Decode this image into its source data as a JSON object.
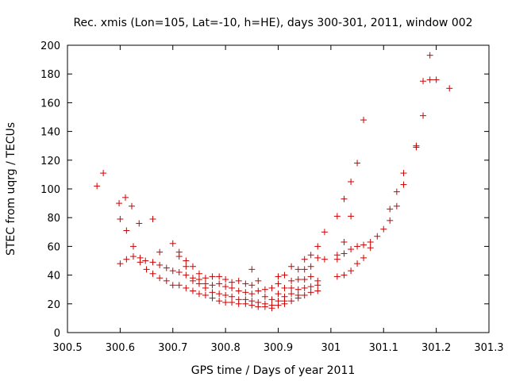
{
  "chart_data": {
    "type": "scatter",
    "title": "Rec. xmis (Lon=105, Lat=-10, h=HE), days 300-301, 2011, window 002",
    "xlabel": "GPS time / Days of year 2011",
    "ylabel": "STEC from uqrg / TECUs",
    "xlim": [
      300.5,
      301.3
    ],
    "ylim": [
      0,
      200
    ],
    "xticks": [
      300.5,
      300.6,
      300.7,
      300.8,
      300.9,
      301,
      301.1,
      301.2,
      301.3
    ],
    "xtick_labels": [
      "300.5",
      "300.6",
      "300.7",
      "300.8",
      "300.9",
      "301",
      "301.1",
      "301.2",
      "301.3"
    ],
    "yticks": [
      0,
      20,
      40,
      60,
      80,
      100,
      120,
      140,
      160,
      180,
      200
    ],
    "ytick_labels": [
      "0",
      "20",
      "40",
      "60",
      "80",
      "100",
      "120",
      "140",
      "160",
      "180",
      "200"
    ],
    "grid": false,
    "marker": "+",
    "marker_color": "#cc0000",
    "series": [
      {
        "name": "STEC",
        "points": [
          [
            300.556,
            102
          ],
          [
            300.568,
            111
          ],
          [
            300.598,
            90
          ],
          [
            300.6,
            79
          ],
          [
            300.6,
            48
          ],
          [
            300.61,
            94
          ],
          [
            300.612,
            71
          ],
          [
            300.612,
            51
          ],
          [
            300.622,
            88
          ],
          [
            300.625,
            60
          ],
          [
            300.625,
            53
          ],
          [
            300.636,
            76
          ],
          [
            300.638,
            52
          ],
          [
            300.638,
            49
          ],
          [
            300.648,
            50
          ],
          [
            300.65,
            44
          ],
          [
            300.662,
            79
          ],
          [
            300.662,
            49
          ],
          [
            300.662,
            41
          ],
          [
            300.675,
            56
          ],
          [
            300.675,
            47
          ],
          [
            300.675,
            38
          ],
          [
            300.688,
            45
          ],
          [
            300.688,
            36
          ],
          [
            300.7,
            62
          ],
          [
            300.7,
            43
          ],
          [
            300.7,
            33
          ],
          [
            300.712,
            56
          ],
          [
            300.712,
            53
          ],
          [
            300.712,
            42
          ],
          [
            300.712,
            33
          ],
          [
            300.725,
            50
          ],
          [
            300.725,
            46
          ],
          [
            300.725,
            40
          ],
          [
            300.725,
            31
          ],
          [
            300.738,
            46
          ],
          [
            300.738,
            38
          ],
          [
            300.738,
            36
          ],
          [
            300.738,
            29
          ],
          [
            300.75,
            41
          ],
          [
            300.75,
            37
          ],
          [
            300.75,
            34
          ],
          [
            300.75,
            27
          ],
          [
            300.762,
            38
          ],
          [
            300.762,
            34
          ],
          [
            300.762,
            31
          ],
          [
            300.762,
            26
          ],
          [
            300.775,
            39
          ],
          [
            300.775,
            33
          ],
          [
            300.775,
            28
          ],
          [
            300.775,
            24
          ],
          [
            300.788,
            39
          ],
          [
            300.788,
            34
          ],
          [
            300.788,
            27
          ],
          [
            300.788,
            22
          ],
          [
            300.8,
            37
          ],
          [
            300.8,
            32
          ],
          [
            300.8,
            26
          ],
          [
            300.8,
            21
          ],
          [
            300.812,
            35
          ],
          [
            300.812,
            31
          ],
          [
            300.812,
            25
          ],
          [
            300.812,
            21
          ],
          [
            300.825,
            36
          ],
          [
            300.825,
            29
          ],
          [
            300.825,
            23
          ],
          [
            300.825,
            20
          ],
          [
            300.838,
            34
          ],
          [
            300.838,
            28
          ],
          [
            300.838,
            23
          ],
          [
            300.838,
            20
          ],
          [
            300.85,
            44
          ],
          [
            300.85,
            33
          ],
          [
            300.85,
            27
          ],
          [
            300.85,
            22
          ],
          [
            300.85,
            19
          ],
          [
            300.862,
            36
          ],
          [
            300.862,
            29
          ],
          [
            300.862,
            21
          ],
          [
            300.862,
            18
          ],
          [
            300.875,
            30
          ],
          [
            300.875,
            25
          ],
          [
            300.875,
            20
          ],
          [
            300.875,
            18
          ],
          [
            300.888,
            31
          ],
          [
            300.888,
            23
          ],
          [
            300.888,
            19
          ],
          [
            300.888,
            17
          ],
          [
            300.9,
            39
          ],
          [
            300.9,
            34
          ],
          [
            300.9,
            27
          ],
          [
            300.9,
            22
          ],
          [
            300.9,
            19
          ],
          [
            300.912,
            40
          ],
          [
            300.912,
            31
          ],
          [
            300.912,
            25
          ],
          [
            300.912,
            22
          ],
          [
            300.912,
            20
          ],
          [
            300.925,
            46
          ],
          [
            300.925,
            36
          ],
          [
            300.925,
            31
          ],
          [
            300.925,
            27
          ],
          [
            300.925,
            22
          ],
          [
            300.938,
            44
          ],
          [
            300.938,
            37
          ],
          [
            300.938,
            30
          ],
          [
            300.938,
            26
          ],
          [
            300.938,
            24
          ],
          [
            300.95,
            51
          ],
          [
            300.95,
            44
          ],
          [
            300.95,
            37
          ],
          [
            300.95,
            31
          ],
          [
            300.95,
            26
          ],
          [
            300.962,
            54
          ],
          [
            300.962,
            46
          ],
          [
            300.962,
            39
          ],
          [
            300.962,
            32
          ],
          [
            300.962,
            28
          ],
          [
            300.975,
            60
          ],
          [
            300.975,
            52
          ],
          [
            300.975,
            36
          ],
          [
            300.975,
            33
          ],
          [
            300.975,
            29
          ],
          [
            300.988,
            70
          ],
          [
            300.988,
            51
          ],
          [
            301.012,
            81
          ],
          [
            301.012,
            54
          ],
          [
            301.012,
            51
          ],
          [
            301.012,
            39
          ],
          [
            301.025,
            93
          ],
          [
            301.025,
            63
          ],
          [
            301.025,
            55
          ],
          [
            301.025,
            40
          ],
          [
            301.038,
            105
          ],
          [
            301.038,
            81
          ],
          [
            301.038,
            58
          ],
          [
            301.038,
            43
          ],
          [
            301.05,
            118
          ],
          [
            301.05,
            60
          ],
          [
            301.05,
            48
          ],
          [
            301.062,
            148
          ],
          [
            301.062,
            61
          ],
          [
            301.062,
            52
          ],
          [
            301.075,
            63
          ],
          [
            301.075,
            59
          ],
          [
            301.088,
            67
          ],
          [
            301.1,
            72
          ],
          [
            301.112,
            86
          ],
          [
            301.112,
            78
          ],
          [
            301.125,
            98
          ],
          [
            301.125,
            88
          ],
          [
            301.138,
            111
          ],
          [
            301.138,
            103
          ],
          [
            301.162,
            130
          ],
          [
            301.162,
            129
          ],
          [
            301.175,
            151
          ],
          [
            301.175,
            175
          ],
          [
            301.188,
            193
          ],
          [
            301.188,
            176
          ],
          [
            301.2,
            176
          ],
          [
            301.225,
            170
          ]
        ]
      }
    ]
  }
}
